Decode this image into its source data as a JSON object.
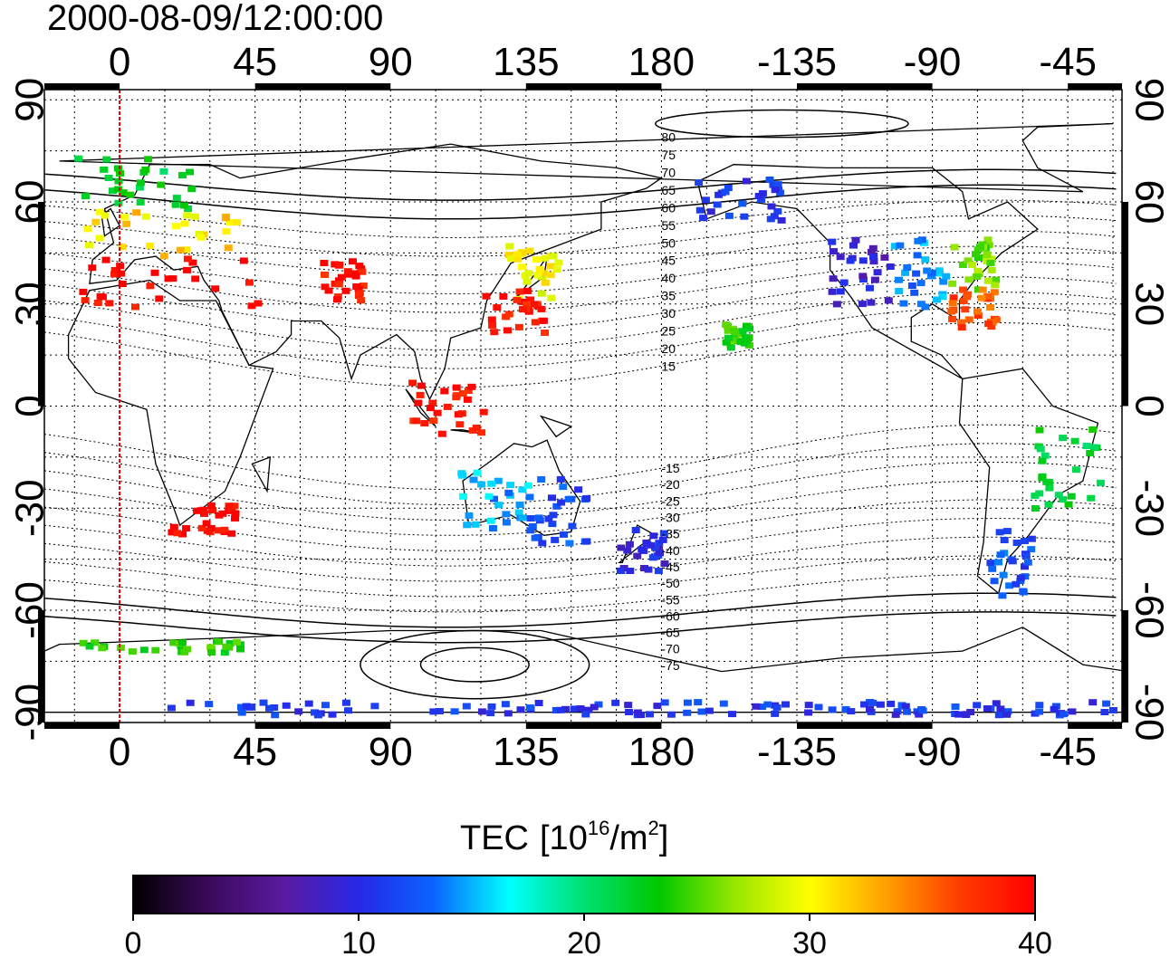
{
  "title": "2000-08-09/12:00:00",
  "map": {
    "lon_top_ticks": [
      "0",
      "45",
      "90",
      "135",
      "180",
      "-135",
      "-90",
      "-45"
    ],
    "lon_bottom_ticks": [
      "0",
      "45",
      "90",
      "135",
      "180",
      "-135",
      "-90",
      "-45"
    ],
    "lat_left_ticks": [
      "90",
      "60",
      "30",
      "0",
      "-30",
      "-60",
      "-90"
    ],
    "lat_right_ticks": [
      "90",
      "60",
      "30",
      "0",
      "-30",
      "-60",
      "-90"
    ],
    "lon_range": [
      -25,
      333
    ],
    "lat_range": [
      -93,
      93
    ],
    "grid": true,
    "meridian_marker_lon": 0,
    "contour_labels": [
      "80",
      "75",
      "70",
      "65",
      "60",
      "55",
      "50",
      "45",
      "40",
      "35",
      "30",
      "25",
      "20",
      "15",
      "-15",
      "-20",
      "-25",
      "-30",
      "-35",
      "-40",
      "-45",
      "-50",
      "-55",
      "-60",
      "-65",
      "-70",
      "-75"
    ],
    "contour_values": [
      80,
      75,
      70,
      65,
      60,
      55,
      50,
      45,
      40,
      35,
      30,
      25,
      20,
      15,
      -15,
      -20,
      -25,
      -30,
      -35,
      -40,
      -45,
      -50,
      -55,
      -60,
      -65,
      -70,
      -75
    ]
  },
  "colorbar": {
    "label_prefix": "TEC",
    "unit_open": "[10",
    "unit_exp1": "16",
    "unit_mid": "/m",
    "unit_exp2": "2",
    "unit_close": "]",
    "min": 0,
    "max": 40,
    "ticks": [
      "0",
      "10",
      "20",
      "30",
      "40"
    ],
    "colormap": [
      "#000000",
      "#3a0a5a",
      "#5a1aa0",
      "#2828e6",
      "#0a64ff",
      "#00ffff",
      "#00e070",
      "#00c800",
      "#96e600",
      "#ffff00",
      "#ffa000",
      "#ff3c00",
      "#ff0000"
    ]
  },
  "tec_patches": [
    {
      "region": "Europe",
      "lon": [
        -15,
        25
      ],
      "lat": [
        58,
        75
      ],
      "tec": 22
    },
    {
      "region": "Europe-south",
      "lon": [
        -12,
        40
      ],
      "lat": [
        45,
        58
      ],
      "tec": 31
    },
    {
      "region": "Mediterranean",
      "lon": [
        -15,
        45
      ],
      "lat": [
        30,
        45
      ],
      "tec": 40
    },
    {
      "region": "Middle-East",
      "lon": [
        65,
        80
      ],
      "lat": [
        32,
        44
      ],
      "tec": 39
    },
    {
      "region": "South-Africa",
      "lon": [
        15,
        38
      ],
      "lat": [
        -37,
        -28
      ],
      "tec": 40
    },
    {
      "region": "Japan",
      "lon": [
        128,
        145
      ],
      "lat": [
        32,
        48
      ],
      "tec": 30
    },
    {
      "region": "East-China",
      "lon": [
        120,
        140
      ],
      "lat": [
        22,
        35
      ],
      "tec": 39
    },
    {
      "region": "Indonesia",
      "lon": [
        95,
        120
      ],
      "lat": [
        -8,
        8
      ],
      "tec": 39
    },
    {
      "region": "Australia-west",
      "lon": [
        112,
        135
      ],
      "lat": [
        -35,
        -18
      ],
      "tec": 15
    },
    {
      "region": "Australia-east",
      "lon": [
        135,
        155
      ],
      "lat": [
        -40,
        -20
      ],
      "tec": 12
    },
    {
      "region": "New-Zealand",
      "lon": [
        165,
        180
      ],
      "lat": [
        -48,
        -35
      ],
      "tec": 10
    },
    {
      "region": "Alaska",
      "lon": [
        -170,
        -140
      ],
      "lat": [
        55,
        68
      ],
      "tec": 11
    },
    {
      "region": "North-America-west",
      "lon": [
        -125,
        -105
      ],
      "lat": [
        30,
        50
      ],
      "tec": 9
    },
    {
      "region": "North-America-central",
      "lon": [
        -105,
        -85
      ],
      "lat": [
        30,
        50
      ],
      "tec": 14
    },
    {
      "region": "North-America-east",
      "lon": [
        -85,
        -70
      ],
      "lat": [
        35,
        50
      ],
      "tec": 26
    },
    {
      "region": "US-southeast",
      "lon": [
        -85,
        -70
      ],
      "lat": [
        24,
        36
      ],
      "tec": 36
    },
    {
      "region": "Hawaii",
      "lon": [
        -160,
        -152
      ],
      "lat": [
        18,
        25
      ],
      "tec": 24
    },
    {
      "region": "South-America-east",
      "lon": [
        -60,
        -35
      ],
      "lat": [
        -30,
        -5
      ],
      "tec": 22
    },
    {
      "region": "South-America-south",
      "lon": [
        -72,
        -58
      ],
      "lat": [
        -55,
        -35
      ],
      "tec": 12
    },
    {
      "region": "Antarctic-Atlantic",
      "lon": [
        -20,
        40
      ],
      "lat": [
        -72,
        -68
      ],
      "tec": 24
    },
    {
      "region": "Antarctic-south",
      "lon": [
        15,
        340
      ],
      "lat": [
        -90,
        -86
      ],
      "tec": 11
    }
  ]
}
